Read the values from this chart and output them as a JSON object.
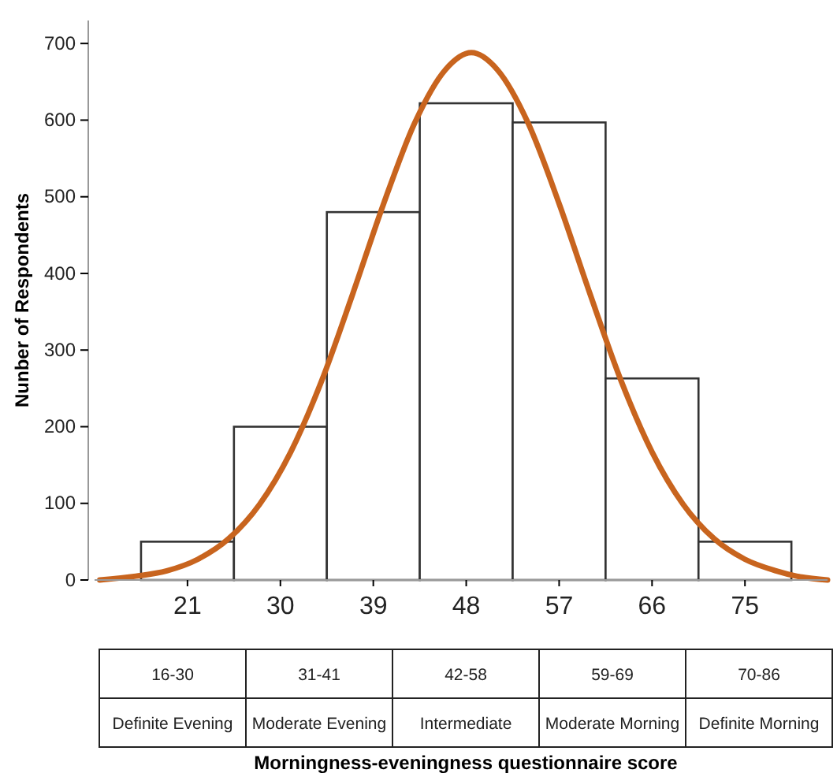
{
  "chart_data": {
    "type": "histogram",
    "ylabel": "Nunber of Respondents",
    "bins": [
      16.5,
      25.5,
      34.5,
      43.5,
      52.5,
      61.5,
      70.5,
      79.5
    ],
    "values": [
      50,
      200,
      480,
      622,
      597,
      263,
      50
    ],
    "color": "#ffffff",
    "series": [
      {
        "type": "line",
        "color": "#c8641e",
        "x": [
          12.5,
          16,
          19,
          22,
          25,
          28,
          31,
          34,
          37,
          40,
          43,
          46,
          48.5,
          51,
          54,
          57,
          60,
          63,
          66,
          69,
          72,
          75,
          78,
          80,
          83
        ],
        "values": [
          0,
          5,
          12,
          27,
          54,
          99,
          167,
          260,
          373,
          491,
          596,
          666,
          688,
          666,
          596,
          491,
          373,
          260,
          167,
          99,
          54,
          27,
          12,
          5,
          0
        ]
      }
    ],
    "xlim": [
      12,
      83
    ],
    "xticks": [
      21,
      30,
      39,
      48,
      57,
      66,
      75
    ],
    "ylim": [
      0,
      730
    ],
    "yticks": [
      0,
      100,
      200,
      300,
      400,
      500,
      600,
      700
    ],
    "grid": false,
    "annotations": [
      "16-30",
      "31-41",
      "42-58",
      "59-69",
      "70-86",
      "Definite Evening",
      "Moderate Evening",
      "Intermediate",
      "Moderate Morning",
      "Definite Morning",
      "Morningness-eveningness questionnaire score"
    ]
  }
}
